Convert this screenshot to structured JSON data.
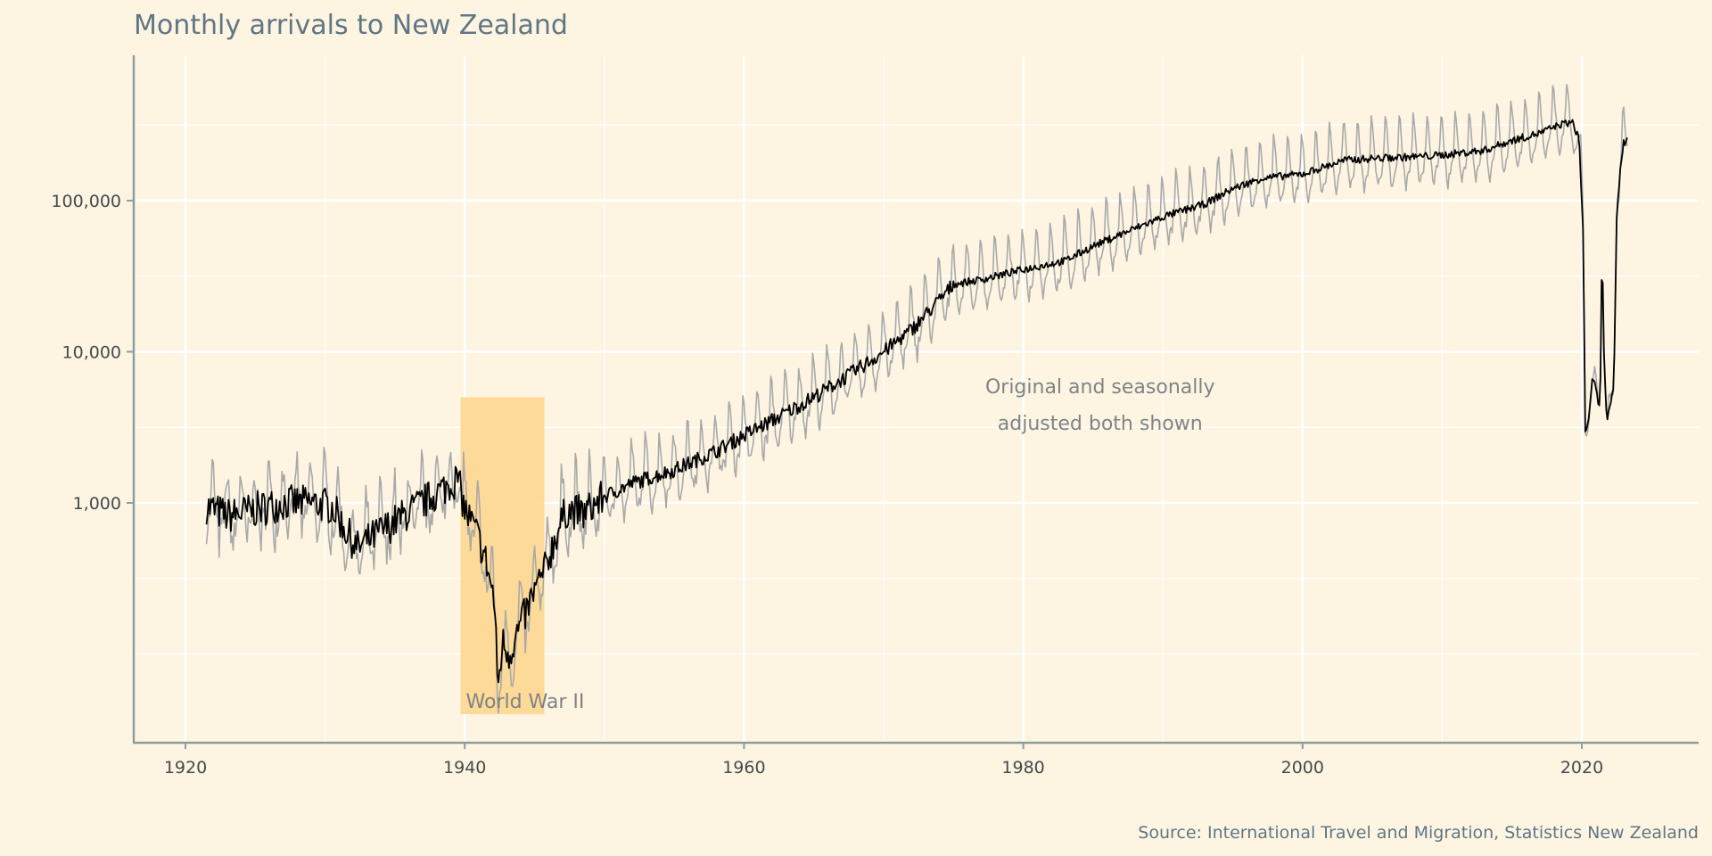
{
  "chart_data": {
    "type": "line",
    "title": "Monthly arrivals to New Zealand",
    "caption": "Source: International Travel and Migration, Statistics New Zealand",
    "xlabel": "",
    "ylabel": "",
    "x_scale": "linear",
    "y_scale": "log10",
    "xlim": [
      1916.3,
      2028.2
    ],
    "ylim": [
      31,
      910000
    ],
    "x_ticks": [
      1920,
      1940,
      1960,
      1980,
      2000,
      2020
    ],
    "x_tick_labels": [
      "1920",
      "1940",
      "1960",
      "1980",
      "2000",
      "2020"
    ],
    "y_ticks": [
      1000,
      10000,
      100000
    ],
    "y_tick_labels": [
      "1,000",
      "10,000",
      "100,000"
    ],
    "y_minor_gridlines": [
      100,
      316,
      3162,
      31623,
      316228
    ],
    "grid": true,
    "legend": "none",
    "colors": {
      "background": "#fdf5e2",
      "original": "#a9a9a9",
      "seasonally_adjusted": "#000000",
      "shade": "#fdd58a",
      "axis": "#8f9d9b",
      "grid": "#ffffff"
    },
    "series": [
      {
        "name": "Original",
        "style": "grey thin line",
        "derived_from": "Seasonally adjusted × seasonal factor",
        "seasonal_factor_by_month": [
          1.75,
          1.35,
          1.05,
          0.85,
          0.7,
          0.62,
          0.72,
          0.78,
          0.8,
          0.95,
          1.15,
          1.9
        ]
      },
      {
        "name": "Seasonally adjusted",
        "style": "black line",
        "x": [
          1921.5,
          1923,
          1925,
          1927,
          1929,
          1930.5,
          1931.5,
          1932.3,
          1933.5,
          1935,
          1937,
          1939.5,
          1940,
          1940.8,
          1941.5,
          1942.1,
          1942.4,
          1942.7,
          1943.2,
          1943.8,
          1944.5,
          1945,
          1945.7,
          1946.5,
          1947.3,
          1948.5,
          1950,
          1952,
          1955,
          1958,
          1960,
          1962,
          1965,
          1968,
          1970,
          1972,
          1974,
          1975,
          1977,
          1980,
          1983,
          1985,
          1987,
          1990,
          1993,
          1995,
          1997,
          2000,
          2003,
          2005,
          2008,
          2010,
          2013,
          2015,
          2017,
          2018.5,
          2019.3,
          2019.8,
          2020.1,
          2020.25,
          2020.5,
          2020.8,
          2021.1,
          2021.3,
          2021.45,
          2021.6,
          2021.8,
          2022.1,
          2022.3,
          2022.5,
          2022.8,
          2023.0,
          2023.3
        ],
        "values": [
          950,
          820,
          900,
          1000,
          1000,
          950,
          650,
          500,
          600,
          750,
          1000,
          1450,
          900,
          650,
          420,
          230,
          60,
          120,
          100,
          140,
          200,
          260,
          350,
          600,
          900,
          850,
          1100,
          1350,
          1650,
          2200,
          2800,
          3500,
          5000,
          7500,
          10000,
          14000,
          22000,
          28000,
          30000,
          35000,
          40000,
          50000,
          60000,
          78000,
          95000,
          120000,
          140000,
          150000,
          185000,
          190000,
          195000,
          200000,
          215000,
          250000,
          280000,
          320000,
          330000,
          260000,
          60000,
          3000,
          3500,
          7000,
          5000,
          4000,
          55000,
          8000,
          3500,
          4500,
          6000,
          80000,
          180000,
          240000,
          260000
        ]
      }
    ],
    "annotations": [
      {
        "type": "shaded_region",
        "x_range": [
          1939.7,
          1945.7
        ],
        "y_range": [
          40,
          5000
        ],
        "label": "World War II"
      },
      {
        "type": "text",
        "text_lines": [
          "Original and seasonally",
          "adjusted both shown"
        ],
        "x": 1985.5,
        "y": 7000
      }
    ]
  }
}
